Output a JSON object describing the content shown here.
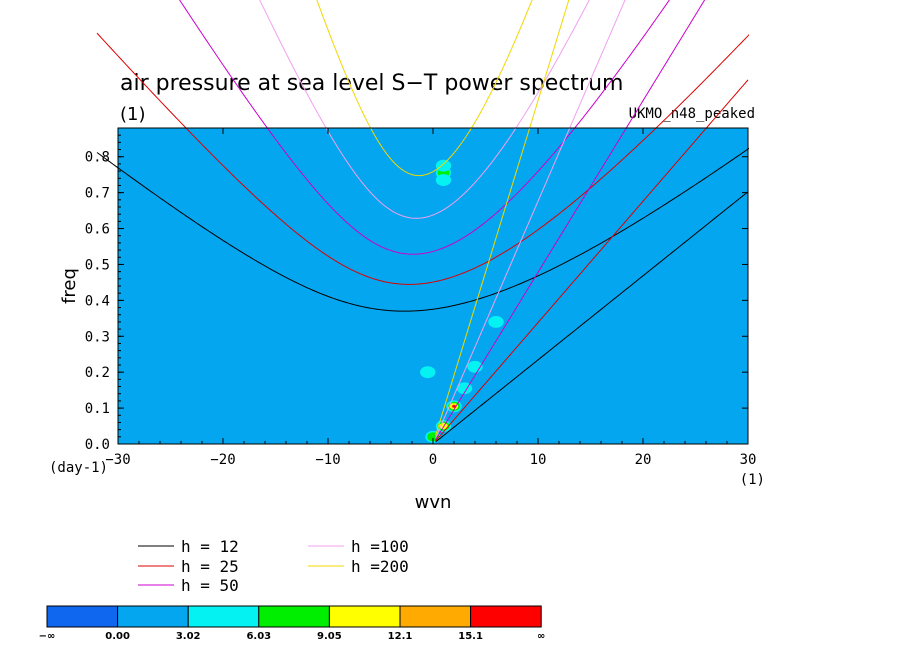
{
  "chart_data": {
    "type": "heatmap",
    "title": "air pressure at sea level S−T power spectrum",
    "subtitle_left": "(1)",
    "subtitle_right": "UKMO_n48_peaked",
    "xlabel": "wvn",
    "ylabel": "freq",
    "x_unit": "(1)",
    "y_unit": "(day-1)",
    "xlim": [
      -30,
      30
    ],
    "ylim": [
      0,
      0.88
    ],
    "x_ticks": [
      -30,
      -20,
      -10,
      0,
      10,
      20,
      30
    ],
    "x_tick_labels": [
      "−30",
      "−20",
      "−10",
      "0",
      "10",
      "20",
      "30"
    ],
    "y_ticks": [
      0,
      0.1,
      0.2,
      0.3,
      0.4,
      0.5,
      0.6,
      0.7,
      0.8
    ],
    "y_tick_labels": [
      "0.0",
      "0.1",
      "0.2",
      "0.3",
      "0.4",
      "0.5",
      "0.6",
      "0.7",
      "0.8"
    ],
    "background_level": "0.00 to 3.02",
    "colorbar": {
      "labels": [
        "−∞",
        "0.00",
        "3.02",
        "6.03",
        "9.05",
        "12.1",
        "15.1",
        "∞"
      ],
      "colors": [
        "#0f66ef",
        "#05a6f0",
        "#05f2f2",
        "#00ef00",
        "#ffff00",
        "#ffaa00",
        "#ff0000"
      ]
    },
    "peaks": [
      {
        "x": 0,
        "y": 0.02,
        "level": 3
      },
      {
        "x": 1,
        "y": 0.05,
        "level": 4
      },
      {
        "x": 2,
        "y": 0.105,
        "level": 6
      },
      {
        "x": 3,
        "y": 0.155,
        "level": 2
      },
      {
        "x": 4,
        "y": 0.215,
        "level": 2
      },
      {
        "x": -0.5,
        "y": 0.2,
        "level": 2
      },
      {
        "x": 6,
        "y": 0.34,
        "level": 2
      },
      {
        "x": 1,
        "y": 0.755,
        "level": 3
      },
      {
        "x": 1,
        "y": 0.735,
        "level": 2
      },
      {
        "x": 1,
        "y": 0.775,
        "level": 2
      }
    ],
    "dispersion_curves": [
      {
        "name": "h = 12",
        "h": 12,
        "color": "#000000"
      },
      {
        "name": "h = 25",
        "h": 25,
        "color": "#dd0000"
      },
      {
        "name": "h = 50",
        "h": 50,
        "color": "#cc00cc"
      },
      {
        "name": "h =100",
        "h": 100,
        "color": "#f0a0f0"
      },
      {
        "name": "h =200",
        "h": 200,
        "color": "#f0d800"
      }
    ]
  }
}
